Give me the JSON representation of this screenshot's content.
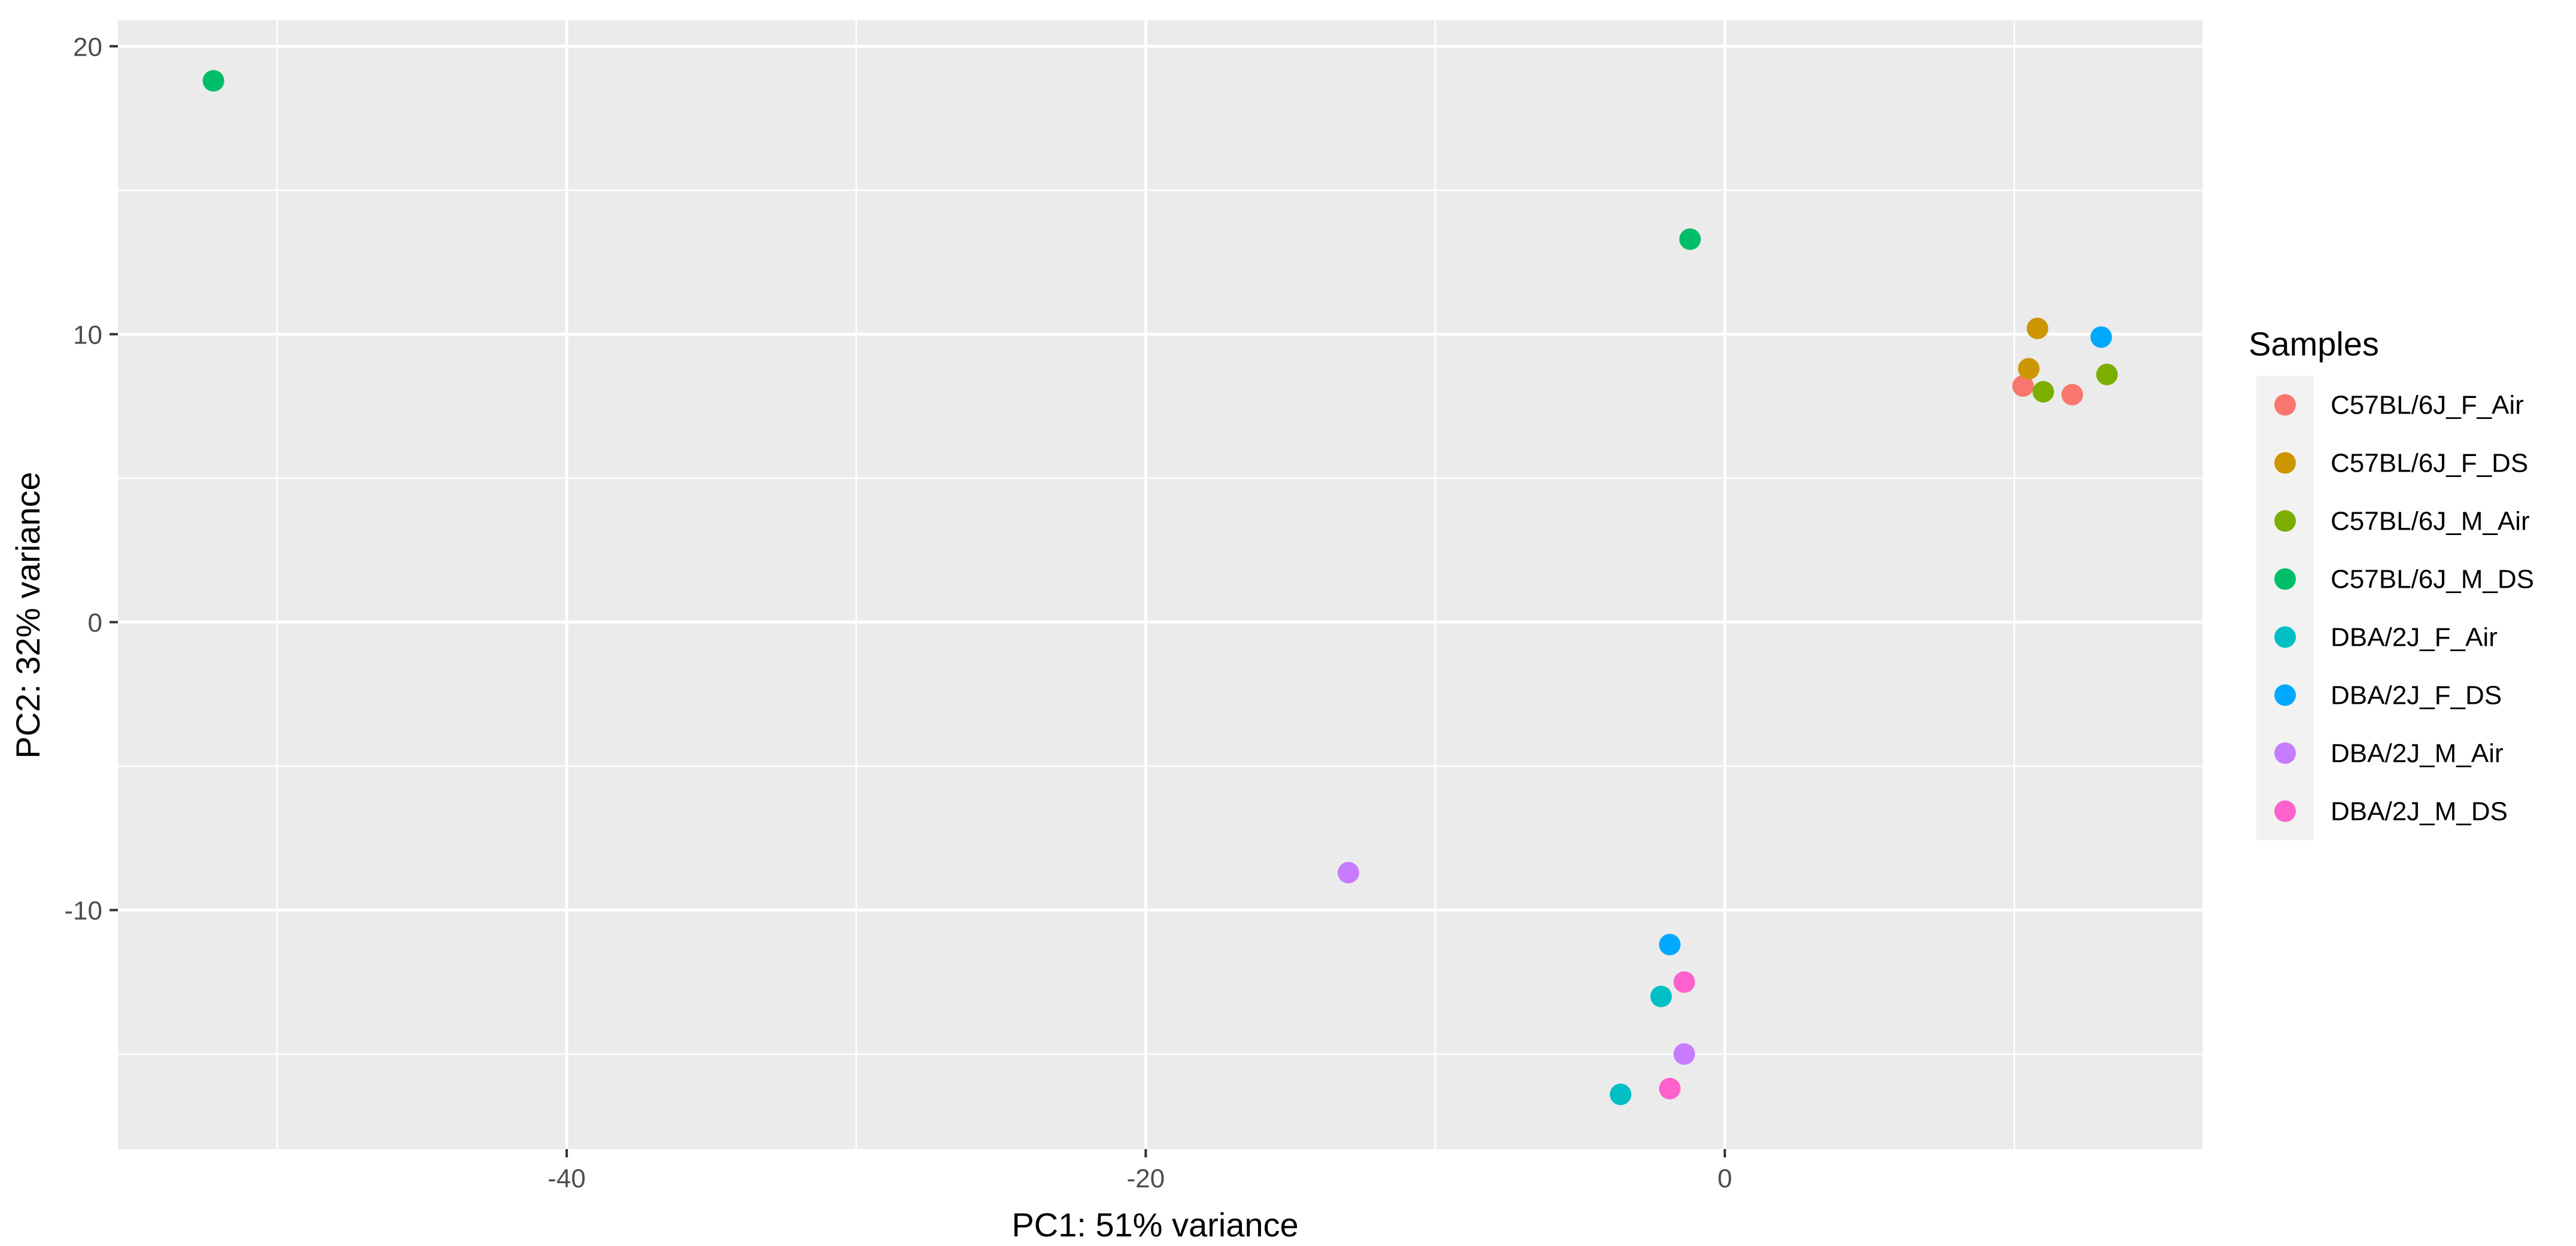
{
  "chart_data": {
    "type": "scatter",
    "xlabel": "PC1: 51% variance",
    "ylabel": "PC2: 32% variance",
    "xlim": [
      -55.5,
      16.5
    ],
    "ylim": [
      -18.3,
      20.9
    ],
    "x_ticks": [
      -40,
      -20,
      0
    ],
    "y_ticks": [
      -10,
      0,
      10,
      20
    ],
    "x_tick_labels": [
      "-40",
      "-20",
      "0"
    ],
    "y_tick_labels": [
      "-10",
      "0",
      "10",
      "20"
    ],
    "grid": true,
    "legend": {
      "title": "Samples",
      "position": "right"
    },
    "series": [
      {
        "name": "C57BL/6J_F_Air",
        "color": "#F8766D",
        "points": [
          [
            10.3,
            8.2
          ],
          [
            12.0,
            7.9
          ]
        ]
      },
      {
        "name": "C57BL/6J_F_DS",
        "color": "#CD9600",
        "points": [
          [
            10.8,
            10.2
          ],
          [
            10.5,
            8.8
          ]
        ]
      },
      {
        "name": "C57BL/6J_M_Air",
        "color": "#7CAE00",
        "points": [
          [
            13.2,
            8.6
          ],
          [
            11.0,
            8.0
          ]
        ]
      },
      {
        "name": "C57BL/6J_M_DS",
        "color": "#00BE67",
        "points": [
          [
            -52.2,
            18.8
          ],
          [
            -1.2,
            13.3
          ]
        ]
      },
      {
        "name": "DBA/2J_F_Air",
        "color": "#00BFC4",
        "points": [
          [
            -2.2,
            -13.0
          ],
          [
            -3.6,
            -16.4
          ]
        ]
      },
      {
        "name": "DBA/2J_F_DS",
        "color": "#00A9FF",
        "points": [
          [
            13.0,
            9.9
          ],
          [
            -1.9,
            -11.2
          ]
        ]
      },
      {
        "name": "DBA/2J_M_Air",
        "color": "#C77CFF",
        "points": [
          [
            -13.0,
            -8.7
          ],
          [
            -1.4,
            -15.0
          ]
        ]
      },
      {
        "name": "DBA/2J_M_DS",
        "color": "#FF61CC",
        "points": [
          [
            -1.4,
            -12.5
          ],
          [
            -1.9,
            -16.2
          ]
        ]
      }
    ]
  }
}
